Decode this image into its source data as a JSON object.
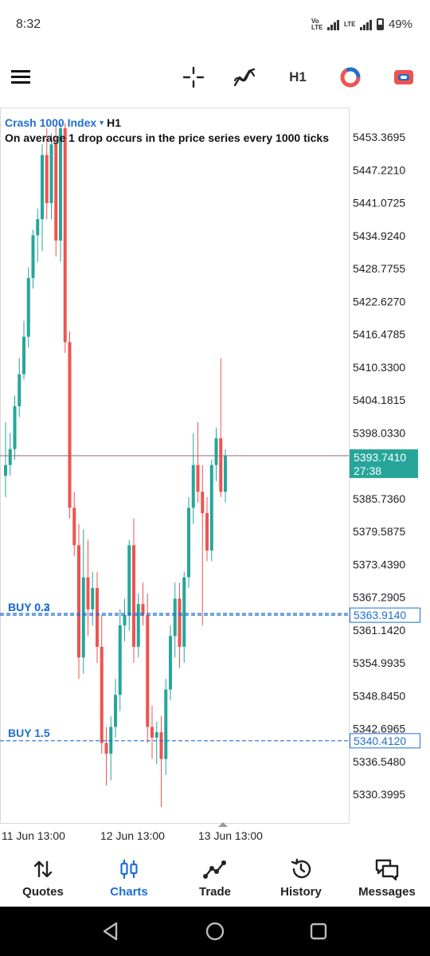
{
  "status_bar": {
    "time": "8:32",
    "volte_label": "Vo LTE",
    "lte_label": "LTE",
    "battery": "49%"
  },
  "toolbar": {
    "menu_icon": "hamburger-icon",
    "crosshair_icon": "crosshair-icon",
    "indicators_icon": "indicators-icon",
    "timeframe": "H1",
    "colors_icon": "color-wheel-icon",
    "templates_icon": "templates-icon"
  },
  "chart": {
    "symbol": "Crash 1000 Index",
    "timeframe": "H1",
    "description": "On average 1 drop occurs in the price series every 1000 ticks",
    "colors": {
      "up": "#26a69a",
      "down": "#ef5350",
      "current_price": "#26a69a",
      "order_line": "#1f6fd0"
    }
  },
  "chart_data": {
    "type": "candlestick",
    "y_ticks": [
      "5453.3695",
      "5447.2210",
      "5441.0725",
      "5434.9240",
      "5428.7755",
      "5422.6270",
      "5416.4785",
      "5410.3300",
      "5404.1815",
      "5398.0330",
      "5385.7360",
      "5379.5875",
      "5373.4390",
      "5367.2905",
      "5361.1420",
      "5354.9935",
      "5348.8450",
      "5342.6965",
      "5336.5480",
      "5330.3995"
    ],
    "x_ticks": [
      "11 Jun 13:00",
      "12 Jun 13:00",
      "13 Jun 13:00"
    ],
    "current_price": "5393.7410",
    "countdown": "27:38",
    "orders": [
      {
        "label": "BUY 0.3",
        "price": "5363.9140"
      },
      {
        "label": "BUY 0.2",
        "price": "5363.9140"
      },
      {
        "label": "BUY 1.5",
        "price": "5340.4120"
      }
    ],
    "candles": [
      {
        "o": 5390.0,
        "h": 5400.0,
        "l": 5386.0,
        "c": 5392.0
      },
      {
        "o": 5392.0,
        "h": 5398.0,
        "l": 5390.0,
        "c": 5395.0
      },
      {
        "o": 5395.0,
        "h": 5405.0,
        "l": 5393.0,
        "c": 5403.0
      },
      {
        "o": 5403.0,
        "h": 5412.0,
        "l": 5401.0,
        "c": 5409.0
      },
      {
        "o": 5409.0,
        "h": 5419.0,
        "l": 5408.0,
        "c": 5416.0
      },
      {
        "o": 5416.0,
        "h": 5429.0,
        "l": 5414.0,
        "c": 5427.0
      },
      {
        "o": 5427.0,
        "h": 5436.0,
        "l": 5425.0,
        "c": 5435.0
      },
      {
        "o": 5435.0,
        "h": 5440.0,
        "l": 5430.0,
        "c": 5438.0
      },
      {
        "o": 5438.0,
        "h": 5452.0,
        "l": 5432.0,
        "c": 5450.0
      },
      {
        "o": 5450.0,
        "h": 5455.0,
        "l": 5438.0,
        "c": 5441.0
      },
      {
        "o": 5441.0,
        "h": 5454.0,
        "l": 5438.0,
        "c": 5452.0
      },
      {
        "o": 5452.0,
        "h": 5455.5,
        "l": 5431.0,
        "c": 5434.0
      },
      {
        "o": 5434.0,
        "h": 5456.0,
        "l": 5430.0,
        "c": 5455.0
      },
      {
        "o": 5455.0,
        "h": 5456.0,
        "l": 5413.0,
        "c": 5415.0
      },
      {
        "o": 5415.0,
        "h": 5417.0,
        "l": 5382.0,
        "c": 5384.0
      },
      {
        "o": 5384.0,
        "h": 5387.0,
        "l": 5375.0,
        "c": 5377.0
      },
      {
        "o": 5377.0,
        "h": 5381.0,
        "l": 5352.0,
        "c": 5356.0
      },
      {
        "o": 5356.0,
        "h": 5380.0,
        "l": 5353.0,
        "c": 5371.0
      },
      {
        "o": 5371.0,
        "h": 5378.0,
        "l": 5360.0,
        "c": 5365.0
      },
      {
        "o": 5365.0,
        "h": 5372.0,
        "l": 5362.0,
        "c": 5369.0
      },
      {
        "o": 5369.0,
        "h": 5372.0,
        "l": 5355.0,
        "c": 5358.0
      },
      {
        "o": 5358.0,
        "h": 5364.0,
        "l": 5338.0,
        "c": 5340.0
      },
      {
        "o": 5340.0,
        "h": 5343.0,
        "l": 5332.0,
        "c": 5338.0
      },
      {
        "o": 5338.0,
        "h": 5345.0,
        "l": 5333.0,
        "c": 5343.0
      },
      {
        "o": 5343.0,
        "h": 5352.0,
        "l": 5341.0,
        "c": 5349.0
      },
      {
        "o": 5349.0,
        "h": 5365.0,
        "l": 5346.0,
        "c": 5362.0
      },
      {
        "o": 5362.0,
        "h": 5367.0,
        "l": 5359.0,
        "c": 5364.0
      },
      {
        "o": 5364.0,
        "h": 5378.0,
        "l": 5361.0,
        "c": 5377.0
      },
      {
        "o": 5377.0,
        "h": 5382.0,
        "l": 5355.0,
        "c": 5358.0
      },
      {
        "o": 5358.0,
        "h": 5368.0,
        "l": 5356.0,
        "c": 5366.0
      },
      {
        "o": 5366.0,
        "h": 5370.0,
        "l": 5362.0,
        "c": 5364.0
      },
      {
        "o": 5364.0,
        "h": 5368.0,
        "l": 5340.0,
        "c": 5343.0
      },
      {
        "o": 5343.0,
        "h": 5347.0,
        "l": 5337.0,
        "c": 5341.0
      },
      {
        "o": 5341.0,
        "h": 5344.0,
        "l": 5336.0,
        "c": 5342.0
      },
      {
        "o": 5342.0,
        "h": 5345.0,
        "l": 5328.0,
        "c": 5337.0
      },
      {
        "o": 5337.0,
        "h": 5352.0,
        "l": 5334.0,
        "c": 5350.0
      },
      {
        "o": 5350.0,
        "h": 5362.0,
        "l": 5348.0,
        "c": 5360.0
      },
      {
        "o": 5360.0,
        "h": 5370.0,
        "l": 5356.0,
        "c": 5367.0
      },
      {
        "o": 5367.0,
        "h": 5370.0,
        "l": 5354.0,
        "c": 5358.0
      },
      {
        "o": 5358.0,
        "h": 5372.0,
        "l": 5355.0,
        "c": 5371.0
      },
      {
        "o": 5371.0,
        "h": 5386.0,
        "l": 5369.0,
        "c": 5384.0
      },
      {
        "o": 5384.0,
        "h": 5398.0,
        "l": 5381.0,
        "c": 5392.0
      },
      {
        "o": 5392.0,
        "h": 5400.0,
        "l": 5385.0,
        "c": 5387.0
      },
      {
        "o": 5387.0,
        "h": 5392.0,
        "l": 5362.0,
        "c": 5383.0
      },
      {
        "o": 5383.0,
        "h": 5386.0,
        "l": 5374.0,
        "c": 5376.0
      },
      {
        "o": 5376.0,
        "h": 5393.0,
        "l": 5374.0,
        "c": 5392.0
      },
      {
        "o": 5392.0,
        "h": 5399.0,
        "l": 5389.0,
        "c": 5397.0
      },
      {
        "o": 5397.0,
        "h": 5412.0,
        "l": 5386.0,
        "c": 5387.0
      },
      {
        "o": 5387.0,
        "h": 5395.0,
        "l": 5385.0,
        "c": 5393.741
      }
    ]
  },
  "bottom_nav": {
    "items": [
      {
        "label": "Quotes",
        "icon": "quotes-icon",
        "active": false
      },
      {
        "label": "Charts",
        "icon": "charts-icon",
        "active": true
      },
      {
        "label": "Trade",
        "icon": "trade-icon",
        "active": false
      },
      {
        "label": "History",
        "icon": "history-icon",
        "active": false
      },
      {
        "label": "Messages",
        "icon": "messages-icon",
        "active": false
      }
    ]
  },
  "system_nav": {
    "back_icon": "back-icon",
    "home_icon": "home-icon",
    "recents_icon": "recents-icon"
  }
}
